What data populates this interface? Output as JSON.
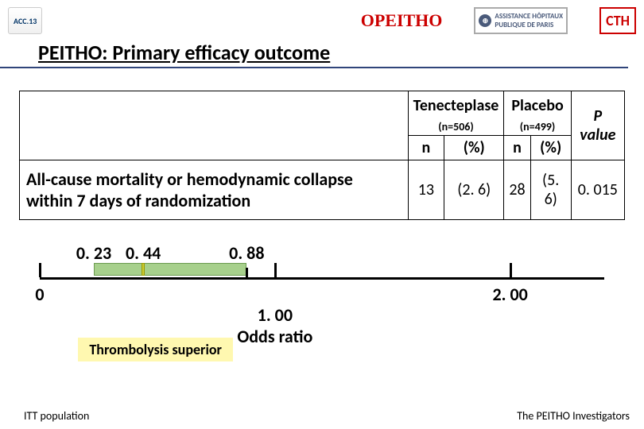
{
  "logos": {
    "acc": "ACC.13",
    "opeitho": "OΡEITHO",
    "ap_line1": "ASSISTANCE",
    "ap_line2": "PUBLIQUE",
    "ap_line3": "HÔPITAUX",
    "ap_line4": "DE PARIS",
    "cth": "CTH"
  },
  "title": "PEITHO: Primary efficacy outcome",
  "table": {
    "group1": "Tenecteplase",
    "group1_n": "(n=506)",
    "group2": "Placebo",
    "group2_n": "(n=499)",
    "pvalue_head": "P value",
    "col_n": "n",
    "col_pct": "(%)",
    "row_label": "All-cause mortality or hemodynamic collapse within 7 days of randomization",
    "t_n": "13",
    "t_pct": "(2. 6)",
    "p_n": "28",
    "p_pct": "(5. 6)",
    "pvalue": "0. 015"
  },
  "forest": {
    "axis_min": 0.0,
    "axis_max": 2.4,
    "ticks_major": [
      0.0,
      1.0,
      2.0
    ],
    "ticks_major_labels": [
      "0",
      "1. 00",
      "2. 00"
    ],
    "ci_lo": 0.23,
    "ci_lo_label": "0. 23",
    "point": 0.44,
    "point_label": "0. 44",
    "ci_hi": 0.88,
    "ci_hi_label": "0. 88",
    "odds_label": "Odds ratio",
    "superior_box": "Thrombolysis superior",
    "colors": {
      "ci_fill": "#a7d08c",
      "ci_border": "#6a9a4e",
      "point_fill": "#cccc33",
      "point_border": "#999900"
    }
  },
  "footnotes": {
    "left": "ITT population",
    "right": "The PEITHO Investigators"
  }
}
